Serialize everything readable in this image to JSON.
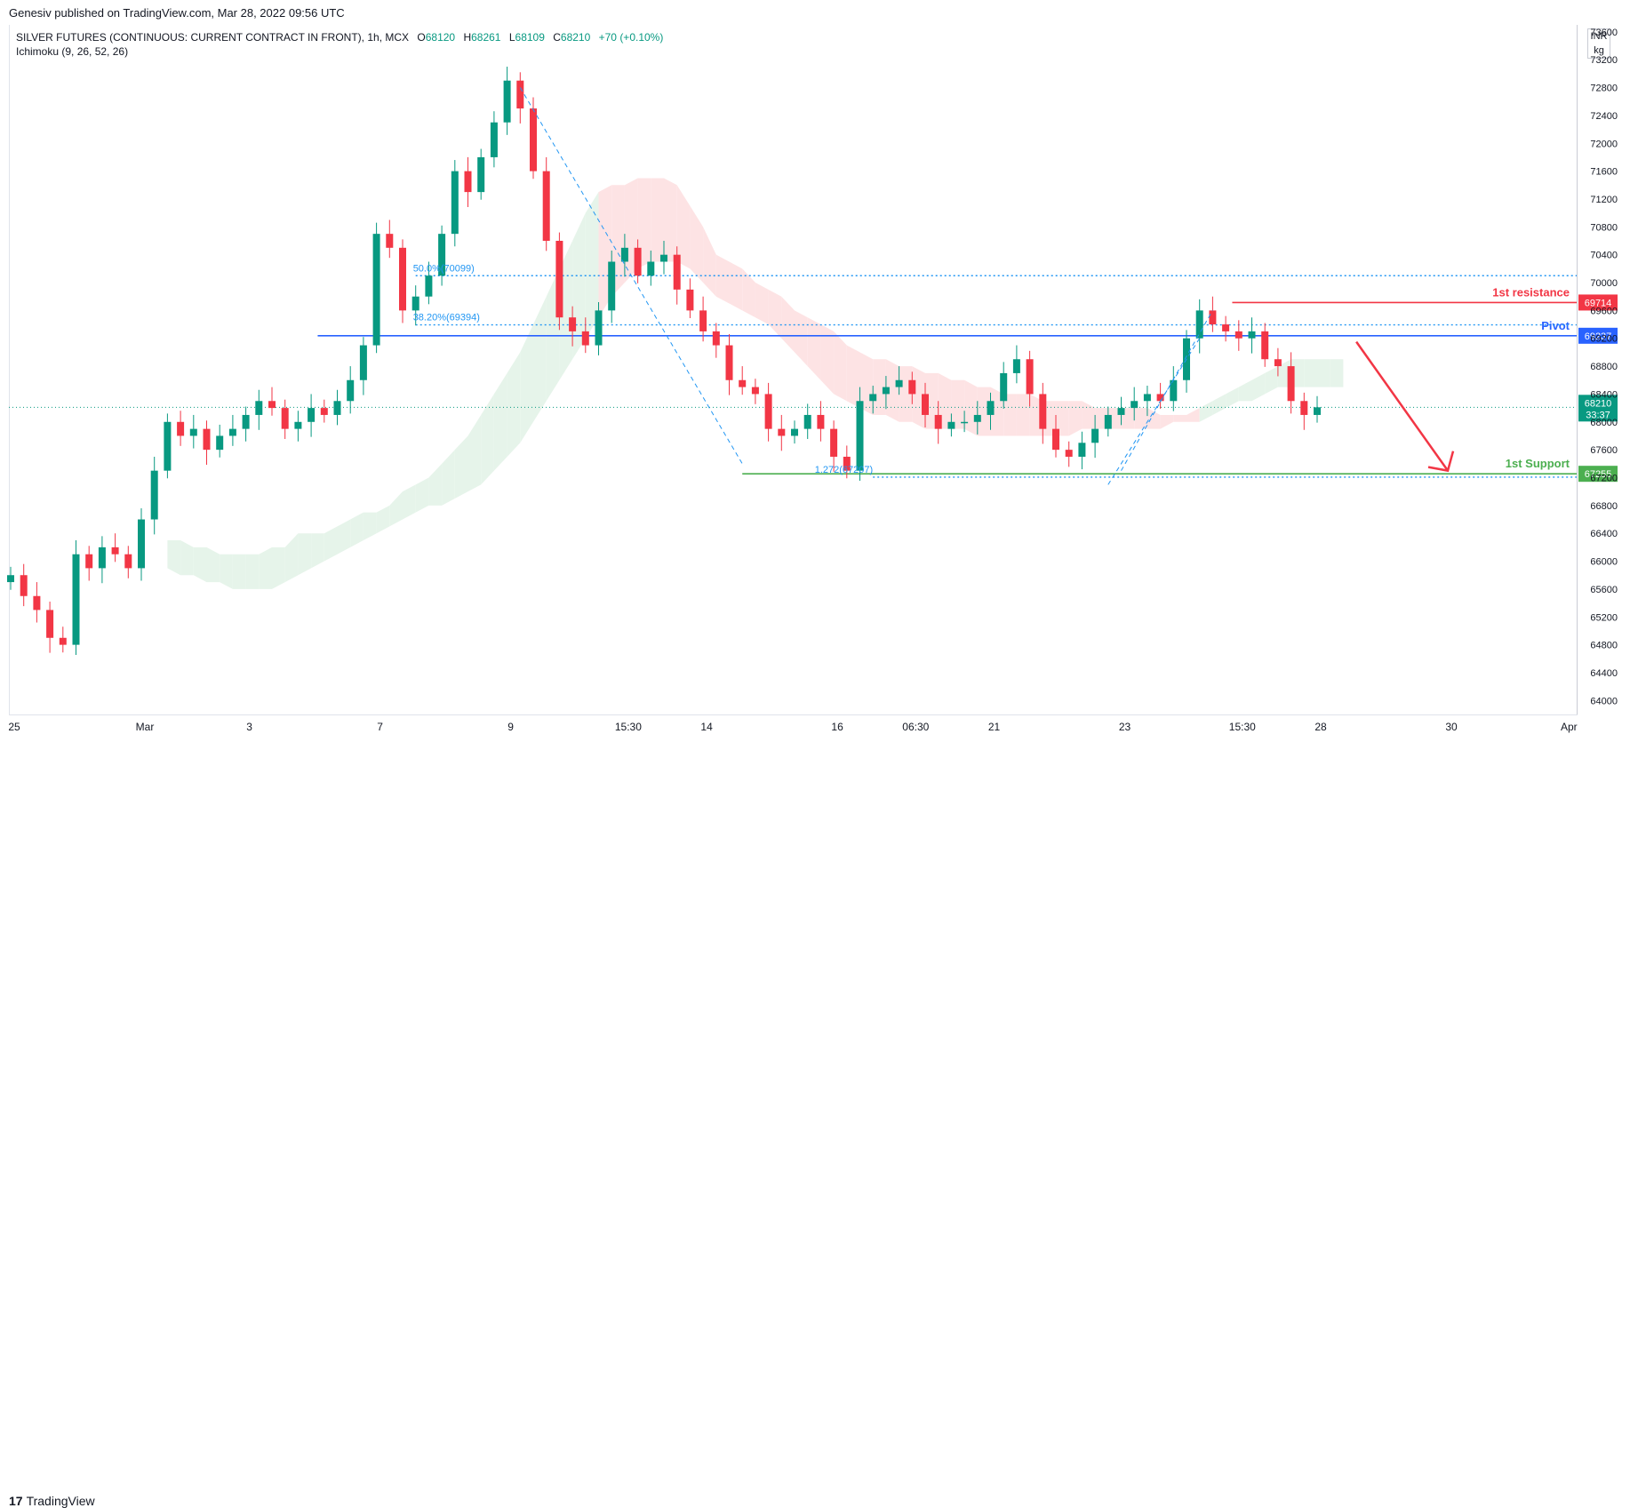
{
  "header": {
    "publisher_line": "Genesiv published on TradingView.com, Mar 28, 2022 09:56 UTC"
  },
  "legend": {
    "symbol": "SILVER FUTURES (CONTINUOUS: CURRENT CONTRACT IN FRONT), 1h, MCX",
    "open_label": "O",
    "open": "68120",
    "high_label": "H",
    "high": "68261",
    "low_label": "L",
    "low": "68109",
    "close_label": "C",
    "close": "68210",
    "change": "+70 (+0.10%)",
    "indicator": "Ichimoku (9, 26, 52, 26)"
  },
  "unit": {
    "currency": "INR",
    "measure": "kg"
  },
  "footer": {
    "brand": "TradingView",
    "logo_mark": "17"
  },
  "colors": {
    "up": "#089981",
    "down": "#f23645",
    "resistance": "#f23645",
    "pivot": "#2962ff",
    "support": "#4caf50",
    "fib": "#2196f3",
    "cloud_bull": "#e6f4ea",
    "cloud_bear": "#fde3e4"
  },
  "chart_data": {
    "type": "candlestick",
    "y_axis": {
      "ylim": [
        63800,
        73700
      ],
      "ticks": [
        64000,
        64400,
        64800,
        65200,
        65600,
        66000,
        66400,
        66800,
        67200,
        67600,
        68000,
        68400,
        68800,
        69200,
        69600,
        70000,
        70400,
        70800,
        71200,
        71600,
        72000,
        72400,
        72800,
        73200,
        73600
      ]
    },
    "x_axis": {
      "ticks": [
        {
          "label": "25",
          "idx": 0
        },
        {
          "label": "Mar",
          "idx": 10
        },
        {
          "label": "3",
          "idx": 18
        },
        {
          "label": "7",
          "idx": 28
        },
        {
          "label": "9",
          "idx": 38
        },
        {
          "label": "15:30",
          "idx": 47
        },
        {
          "label": "14",
          "idx": 53
        },
        {
          "label": "16",
          "idx": 63
        },
        {
          "label": "06:30",
          "idx": 69
        },
        {
          "label": "21",
          "idx": 75
        },
        {
          "label": "23",
          "idx": 85
        },
        {
          "label": "15:30",
          "idx": 94
        },
        {
          "label": "28",
          "idx": 100
        },
        {
          "label": "30",
          "idx": 110
        },
        {
          "label": "Apr",
          "idx": 119
        }
      ]
    },
    "close_series": [
      65800,
      65500,
      65300,
      64900,
      64800,
      66100,
      65900,
      66200,
      66100,
      65900,
      66600,
      67300,
      68000,
      67800,
      67900,
      67600,
      67800,
      67900,
      68100,
      68300,
      68200,
      67900,
      68000,
      68200,
      68100,
      68300,
      68600,
      69100,
      70700,
      70500,
      69600,
      69800,
      70100,
      70700,
      71600,
      71300,
      71800,
      72300,
      72900,
      72500,
      71600,
      70600,
      69500,
      69300,
      69100,
      69600,
      70300,
      70500,
      70100,
      70300,
      70400,
      69900,
      69600,
      69300,
      69100,
      68600,
      68500,
      68400,
      67900,
      67800,
      67900,
      68100,
      67900,
      67500,
      67300,
      68300,
      68400,
      68500,
      68600,
      68400,
      68100,
      67900,
      68000,
      68000,
      68100,
      68300,
      68700,
      68900,
      68400,
      67900,
      67600,
      67500,
      67700,
      67900,
      68100,
      68200,
      68300,
      68400,
      68300,
      68600,
      69200,
      69600,
      69400,
      69300,
      69200,
      69300,
      68900,
      68800,
      68300,
      68100,
      68210
    ],
    "last_bar_idx": 100,
    "levels": [
      {
        "name": "1st resistance",
        "value": 69714,
        "label": "69714"
      },
      {
        "name": "Pivot",
        "value": 69237,
        "label": "69237"
      },
      {
        "name": "1st Support",
        "value": 67255,
        "label": "67255"
      }
    ],
    "current_price": {
      "value": 68210,
      "label": "68210",
      "countdown": "33:37"
    },
    "fib_annotations": [
      {
        "text": "50.0%(70099)",
        "value": 70099
      },
      {
        "text": "38.20%(69394)",
        "value": 69394
      },
      {
        "text": "1.272(67207)",
        "value": 67207
      }
    ],
    "ichimoku_cloud": {
      "upper": [
        66300,
        66300,
        66200,
        66200,
        66100,
        66100,
        66100,
        66100,
        66200,
        66200,
        66400,
        66400,
        66400,
        66500,
        66600,
        66700,
        66700,
        66800,
        67000,
        67100,
        67200,
        67400,
        67600,
        67800,
        68100,
        68400,
        68700,
        69000,
        69400,
        69800,
        70200,
        70600,
        71000,
        71300,
        71400,
        71400,
        71500,
        71500,
        71500,
        71400,
        71100,
        70800,
        70400,
        70300,
        70200,
        70000,
        69900,
        69800,
        69600,
        69500,
        69400,
        69300,
        69100,
        69000,
        68900,
        68900,
        68800,
        68800,
        68700,
        68700,
        68600,
        68600,
        68500,
        68500,
        68400,
        68400,
        68400,
        68300,
        68300,
        68300,
        68300,
        68200,
        68200,
        68200,
        68200,
        68200,
        68100,
        68100,
        68100,
        68200,
        68300,
        68400,
        68500,
        68600,
        68700,
        68800,
        68900,
        68900,
        68900,
        68900,
        68900
      ],
      "lower": [
        65900,
        65800,
        65800,
        65700,
        65700,
        65600,
        65600,
        65600,
        65600,
        65700,
        65800,
        65900,
        66000,
        66100,
        66200,
        66300,
        66400,
        66500,
        66600,
        66700,
        66800,
        66800,
        66900,
        67000,
        67100,
        67300,
        67500,
        67700,
        68000,
        68300,
        68600,
        68900,
        69200,
        69500,
        69800,
        70000,
        70200,
        70300,
        70300,
        70300,
        70200,
        70000,
        69800,
        69700,
        69600,
        69500,
        69400,
        69200,
        69000,
        68800,
        68600,
        68400,
        68300,
        68200,
        68100,
        68100,
        68000,
        68000,
        67900,
        67900,
        67900,
        67900,
        67800,
        67800,
        67800,
        67800,
        67800,
        67800,
        67800,
        67800,
        67900,
        67900,
        67900,
        67900,
        67900,
        67900,
        67900,
        68000,
        68000,
        68000,
        68100,
        68200,
        68300,
        68300,
        68400,
        68500,
        68500,
        68500,
        68500,
        68500,
        68500
      ],
      "start_idx": 12
    },
    "forecast_arrow": {
      "from": {
        "idx": 103,
        "value": 69150
      },
      "to": {
        "idx": 110,
        "value": 67300
      }
    }
  }
}
